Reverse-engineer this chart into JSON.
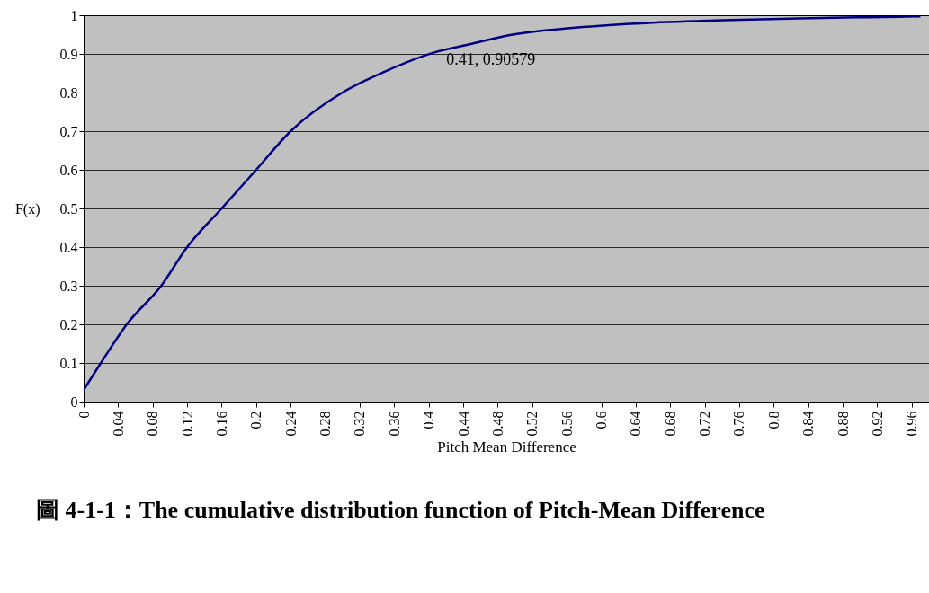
{
  "chart_data": {
    "type": "line",
    "title": "圖 4-1-1：The cumulative distribution function of Pitch-Mean Difference",
    "xlabel": "Pitch Mean Difference",
    "ylabel": "F(x)",
    "x": [
      0,
      0.02,
      0.05,
      0.09,
      0.12,
      0.16,
      0.2,
      0.24,
      0.3,
      0.35,
      0.41,
      0.45,
      0.49,
      0.57,
      0.66,
      0.74,
      0.83,
      0.91,
      0.97
    ],
    "series": [
      {
        "color": "#000080",
        "values": [
          0.03,
          0.1,
          0.2,
          0.3,
          0.4,
          0.5,
          0.6,
          0.7,
          0.8,
          0.855,
          0.906,
          0.926,
          0.947,
          0.968,
          0.981,
          0.987,
          0.992,
          0.995,
          0.997
        ]
      }
    ],
    "xlim": [
      0,
      0.98
    ],
    "xticks": [
      0,
      0.04,
      0.08,
      0.12,
      0.16,
      0.2,
      0.24,
      0.28,
      0.32,
      0.36,
      0.4,
      0.44,
      0.48,
      0.52,
      0.56,
      0.6,
      0.64,
      0.68,
      0.72,
      0.76,
      0.8,
      0.84,
      0.88,
      0.92,
      0.96
    ],
    "ylim": [
      0,
      1
    ],
    "yticks": [
      0,
      0.1,
      0.2,
      0.3,
      0.4,
      0.5,
      0.6,
      0.7,
      0.8,
      0.9,
      1
    ],
    "annotations": [
      {
        "text": "0.41, 0.90579",
        "x": 0.41,
        "y": 0.90579
      }
    ],
    "grid": "y",
    "marker": "none",
    "line_style": "solid"
  }
}
